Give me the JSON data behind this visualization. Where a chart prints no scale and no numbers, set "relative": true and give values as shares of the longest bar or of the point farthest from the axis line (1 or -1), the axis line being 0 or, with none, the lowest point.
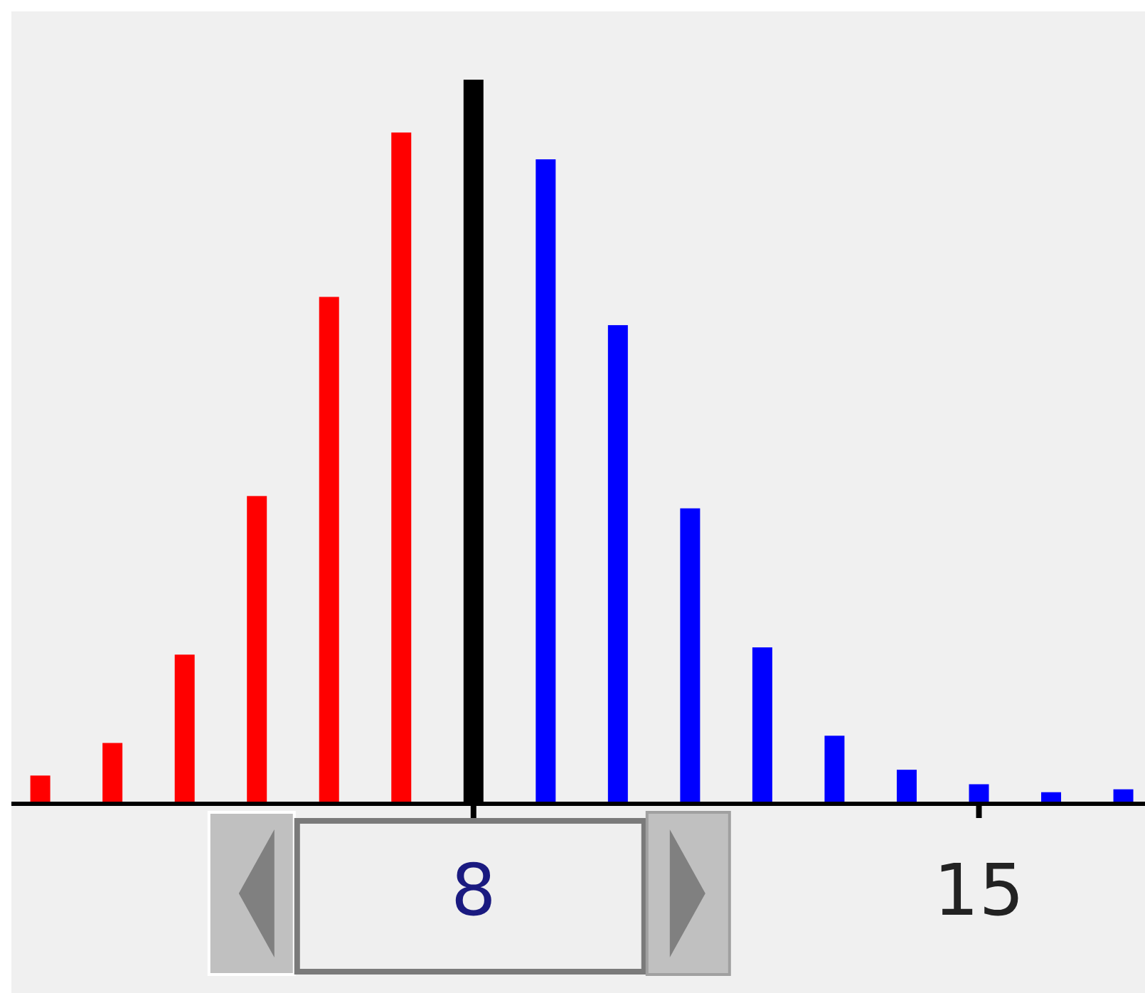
{
  "chart_data": {
    "type": "bar",
    "relative": true,
    "x": [
      2,
      3,
      4,
      5,
      6,
      7,
      8,
      9,
      10,
      11,
      12,
      13,
      14,
      15,
      16,
      17
    ],
    "values": [
      0.039,
      0.084,
      0.206,
      0.425,
      0.7,
      0.927,
      1,
      0.89,
      0.661,
      0.408,
      0.216,
      0.094,
      0.047,
      0.027,
      0.016,
      0.02
    ],
    "colors": [
      "#ff0000",
      "#ff0000",
      "#ff0000",
      "#ff0000",
      "#ff0000",
      "#ff0000",
      "#000000",
      "#0000ff",
      "#0000ff",
      "#0000ff",
      "#0000ff",
      "#0000ff",
      "#0000ff",
      "#0000ff",
      "#0000ff",
      "#0000ff"
    ],
    "xlim": [
      1.6,
      17.3
    ],
    "xticks": [
      8,
      15
    ],
    "grid": false
  }
}
